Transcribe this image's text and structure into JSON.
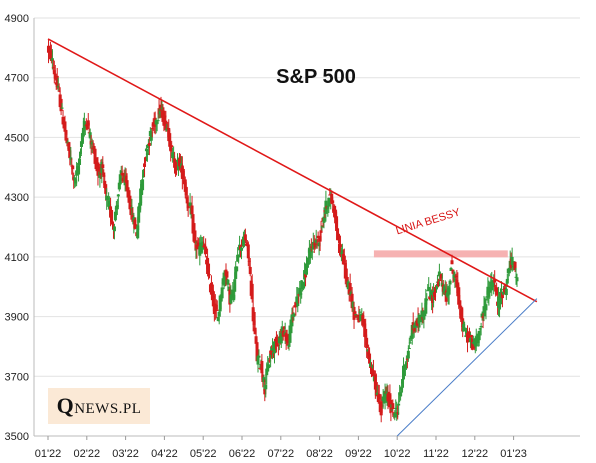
{
  "chart_data": {
    "type": "candlestick",
    "title": "S&P 500",
    "xlabel": "",
    "ylabel": "",
    "ylim": [
      3500,
      4900
    ],
    "yticks": [
      3500,
      3700,
      3900,
      4100,
      4300,
      4500,
      4700,
      4900
    ],
    "x_ticks": [
      "01'22",
      "02'22",
      "03'22",
      "04'22",
      "05'22",
      "06'22",
      "07'22",
      "08'22",
      "09'22",
      "10'22",
      "11'22",
      "12'22",
      "01'23"
    ],
    "grid": "horizontal",
    "series": [
      {
        "values": [
          [
            0.0,
            4800
          ],
          [
            0.1,
            4770
          ],
          [
            0.2,
            4700
          ],
          [
            0.3,
            4640
          ],
          [
            0.4,
            4560
          ],
          [
            0.5,
            4480
          ],
          [
            0.6,
            4420
          ],
          [
            0.7,
            4350
          ],
          [
            0.8,
            4400
          ],
          [
            0.9,
            4520
          ],
          [
            1.0,
            4560
          ],
          [
            1.1,
            4500
          ],
          [
            1.2,
            4450
          ],
          [
            1.3,
            4380
          ],
          [
            1.4,
            4400
          ],
          [
            1.5,
            4300
          ],
          [
            1.6,
            4260
          ],
          [
            1.7,
            4200
          ],
          [
            1.8,
            4290
          ],
          [
            1.9,
            4380
          ],
          [
            2.0,
            4350
          ],
          [
            2.1,
            4290
          ],
          [
            2.2,
            4230
          ],
          [
            2.3,
            4180
          ],
          [
            2.4,
            4320
          ],
          [
            2.5,
            4420
          ],
          [
            2.6,
            4480
          ],
          [
            2.7,
            4530
          ],
          [
            2.8,
            4560
          ],
          [
            2.9,
            4600
          ],
          [
            3.0,
            4560
          ],
          [
            3.1,
            4530
          ],
          [
            3.2,
            4450
          ],
          [
            3.3,
            4400
          ],
          [
            3.4,
            4420
          ],
          [
            3.5,
            4370
          ],
          [
            3.6,
            4290
          ],
          [
            3.7,
            4250
          ],
          [
            3.8,
            4140
          ],
          [
            3.9,
            4120
          ],
          [
            4.0,
            4150
          ],
          [
            4.1,
            4080
          ],
          [
            4.2,
            4000
          ],
          [
            4.3,
            3930
          ],
          [
            4.4,
            3900
          ],
          [
            4.5,
            4010
          ],
          [
            4.6,
            4050
          ],
          [
            4.7,
            3960
          ],
          [
            4.8,
            3980
          ],
          [
            4.9,
            4120
          ],
          [
            5.0,
            4140
          ],
          [
            5.1,
            4160
          ],
          [
            5.2,
            4080
          ],
          [
            5.3,
            3900
          ],
          [
            5.4,
            3760
          ],
          [
            5.5,
            3740
          ],
          [
            5.6,
            3660
          ],
          [
            5.7,
            3750
          ],
          [
            5.8,
            3790
          ],
          [
            5.9,
            3820
          ],
          [
            6.0,
            3830
          ],
          [
            6.1,
            3860
          ],
          [
            6.2,
            3800
          ],
          [
            6.3,
            3900
          ],
          [
            6.4,
            3940
          ],
          [
            6.5,
            3990
          ],
          [
            6.6,
            4020
          ],
          [
            6.7,
            4080
          ],
          [
            6.8,
            4130
          ],
          [
            6.9,
            4150
          ],
          [
            7.0,
            4150
          ],
          [
            7.1,
            4230
          ],
          [
            7.2,
            4280
          ],
          [
            7.3,
            4300
          ],
          [
            7.4,
            4250
          ],
          [
            7.5,
            4140
          ],
          [
            7.6,
            4110
          ],
          [
            7.7,
            4020
          ],
          [
            7.8,
            3990
          ],
          [
            7.9,
            3910
          ],
          [
            8.0,
            3900
          ],
          [
            8.1,
            3890
          ],
          [
            8.2,
            3820
          ],
          [
            8.3,
            3750
          ],
          [
            8.4,
            3700
          ],
          [
            8.5,
            3640
          ],
          [
            8.6,
            3590
          ],
          [
            8.7,
            3640
          ],
          [
            8.8,
            3620
          ],
          [
            8.9,
            3580
          ],
          [
            9.0,
            3580
          ],
          [
            9.1,
            3650
          ],
          [
            9.2,
            3740
          ],
          [
            9.3,
            3780
          ],
          [
            9.4,
            3860
          ],
          [
            9.5,
            3870
          ],
          [
            9.6,
            3900
          ],
          [
            9.7,
            3910
          ],
          [
            9.8,
            3990
          ],
          [
            9.9,
            3960
          ],
          [
            10.0,
            3990
          ],
          [
            10.1,
            4030
          ],
          [
            10.2,
            4000
          ],
          [
            10.3,
            3960
          ],
          [
            10.4,
            4070
          ],
          [
            10.5,
            4030
          ],
          [
            10.6,
            3960
          ],
          [
            10.7,
            3860
          ],
          [
            10.8,
            3840
          ],
          [
            10.9,
            3820
          ],
          [
            11.0,
            3800
          ],
          [
            11.1,
            3840
          ],
          [
            11.2,
            3890
          ],
          [
            11.3,
            3960
          ],
          [
            11.4,
            4000
          ],
          [
            11.5,
            4020
          ],
          [
            11.6,
            3940
          ],
          [
            11.7,
            3980
          ],
          [
            11.8,
            3990
          ],
          [
            11.9,
            4070
          ],
          [
            12.0,
            4080
          ],
          [
            12.1,
            4020
          ]
        ]
      }
    ],
    "trendlines": [
      {
        "color": "#e01818",
        "points": [
          [
            0.0,
            4830
          ],
          [
            12.6,
            3950
          ]
        ]
      },
      {
        "color": "#4a7dc8",
        "points": [
          [
            9.0,
            3500
          ],
          [
            12.6,
            3960
          ]
        ]
      }
    ],
    "resistance_band": {
      "color": "#f6b2b2",
      "x": [
        8.4,
        11.85
      ],
      "y": 4110
    },
    "annotations": [
      {
        "text": "LINIA BESSY",
        "x": 9.0,
        "y": 4175,
        "color": "#d81818"
      }
    ]
  },
  "logo": {
    "q": "Q",
    "rest": "NEWS.PL"
  }
}
